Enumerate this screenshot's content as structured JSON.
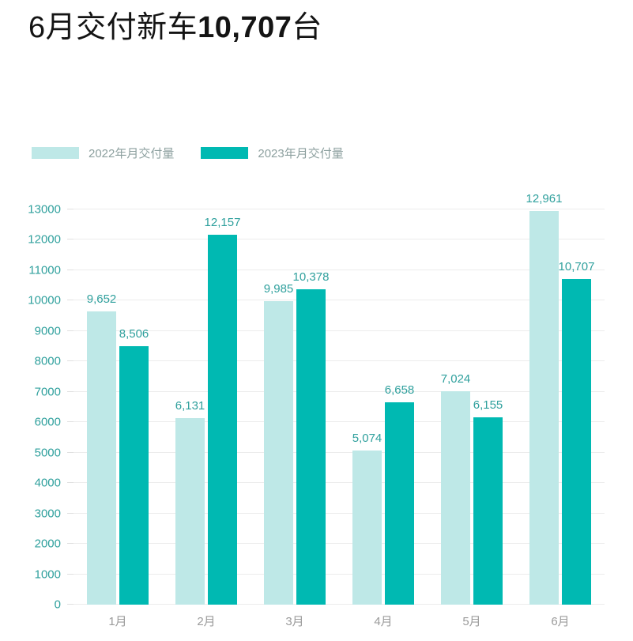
{
  "title": {
    "prefix": "6月交付新车",
    "number": "10,707",
    "suffix": "台"
  },
  "legend": {
    "items": [
      {
        "label": "2022年月交付量",
        "color": "#bee8e7"
      },
      {
        "label": "2023年月交付量",
        "color": "#00b9b2"
      }
    ]
  },
  "chart_data": {
    "type": "bar",
    "title": "6月交付新车10,707台",
    "categories": [
      "1月",
      "2月",
      "3月",
      "4月",
      "5月",
      "6月"
    ],
    "series": [
      {
        "name": "2022年月交付量",
        "color": "#bee8e7",
        "values": [
          9652,
          6131,
          9985,
          5074,
          7024,
          12961
        ],
        "labels": [
          "9,652",
          "6,131",
          "9,985",
          "5,074",
          "7,024",
          "12,961"
        ]
      },
      {
        "name": "2023年月交付量",
        "color": "#00b9b2",
        "values": [
          8506,
          12157,
          10378,
          6658,
          6155,
          10707
        ],
        "labels": [
          "8,506",
          "12,157",
          "10,378",
          "6,658",
          "6,155",
          "10,707"
        ]
      }
    ],
    "xlabel": "",
    "ylabel": "",
    "ylim": [
      0,
      13000
    ],
    "ytick_step": 1000,
    "grid": true,
    "legend_position": "top-left",
    "colors": {
      "tick_label": "#2fa09d",
      "value_label": "#2fa09d",
      "xtick_label": "#9b9b9b",
      "gridline": "#ececec",
      "legend_text": "#8da09f"
    }
  }
}
